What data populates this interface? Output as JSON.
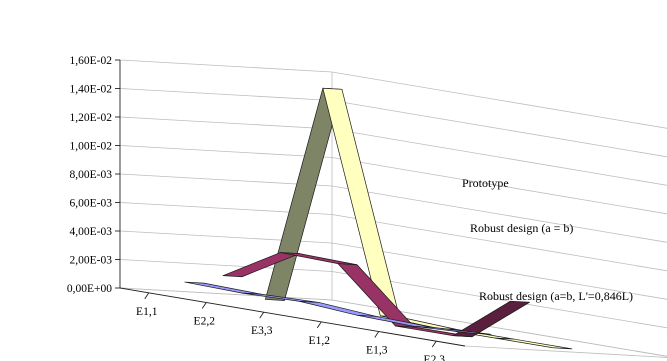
{
  "chart_data": {
    "type": "line",
    "variant": "3d-ribbon",
    "categories": [
      "E1,1",
      "E2,2",
      "E3,3",
      "E1,2",
      "E1,3",
      "E2,3"
    ],
    "y_ticks": [
      "0,00E+00",
      "2,00E-03",
      "4,00E-03",
      "6,00E-03",
      "8,00E-03",
      "1,00E-02",
      "1,20E-02",
      "1,40E-02",
      "1,60E-02"
    ],
    "ylim": [
      0,
      0.016
    ],
    "grid": true,
    "legend_placement": "right",
    "series": [
      {
        "name": "Prototype",
        "values": [
          0.0,
          0.0155,
          0.0002,
          0.0,
          0.0,
          0.0
        ],
        "color": "#ffffc0",
        "side_color": "#7e8466"
      },
      {
        "name": "Robust design (a = b)",
        "values": [
          0.0015,
          0.0038,
          0.0037,
          0.0,
          0.0,
          0.0031
        ],
        "color": "#993366",
        "side_color": "#5a1f3d"
      },
      {
        "name": "Robust design (a=b, L'=0,846L)",
        "values": [
          0.0009,
          0.0008,
          0.0009,
          0.0006,
          0.0005,
          0.0007
        ],
        "color": "#9999ff",
        "side_color": "#6a6ad0"
      }
    ]
  }
}
